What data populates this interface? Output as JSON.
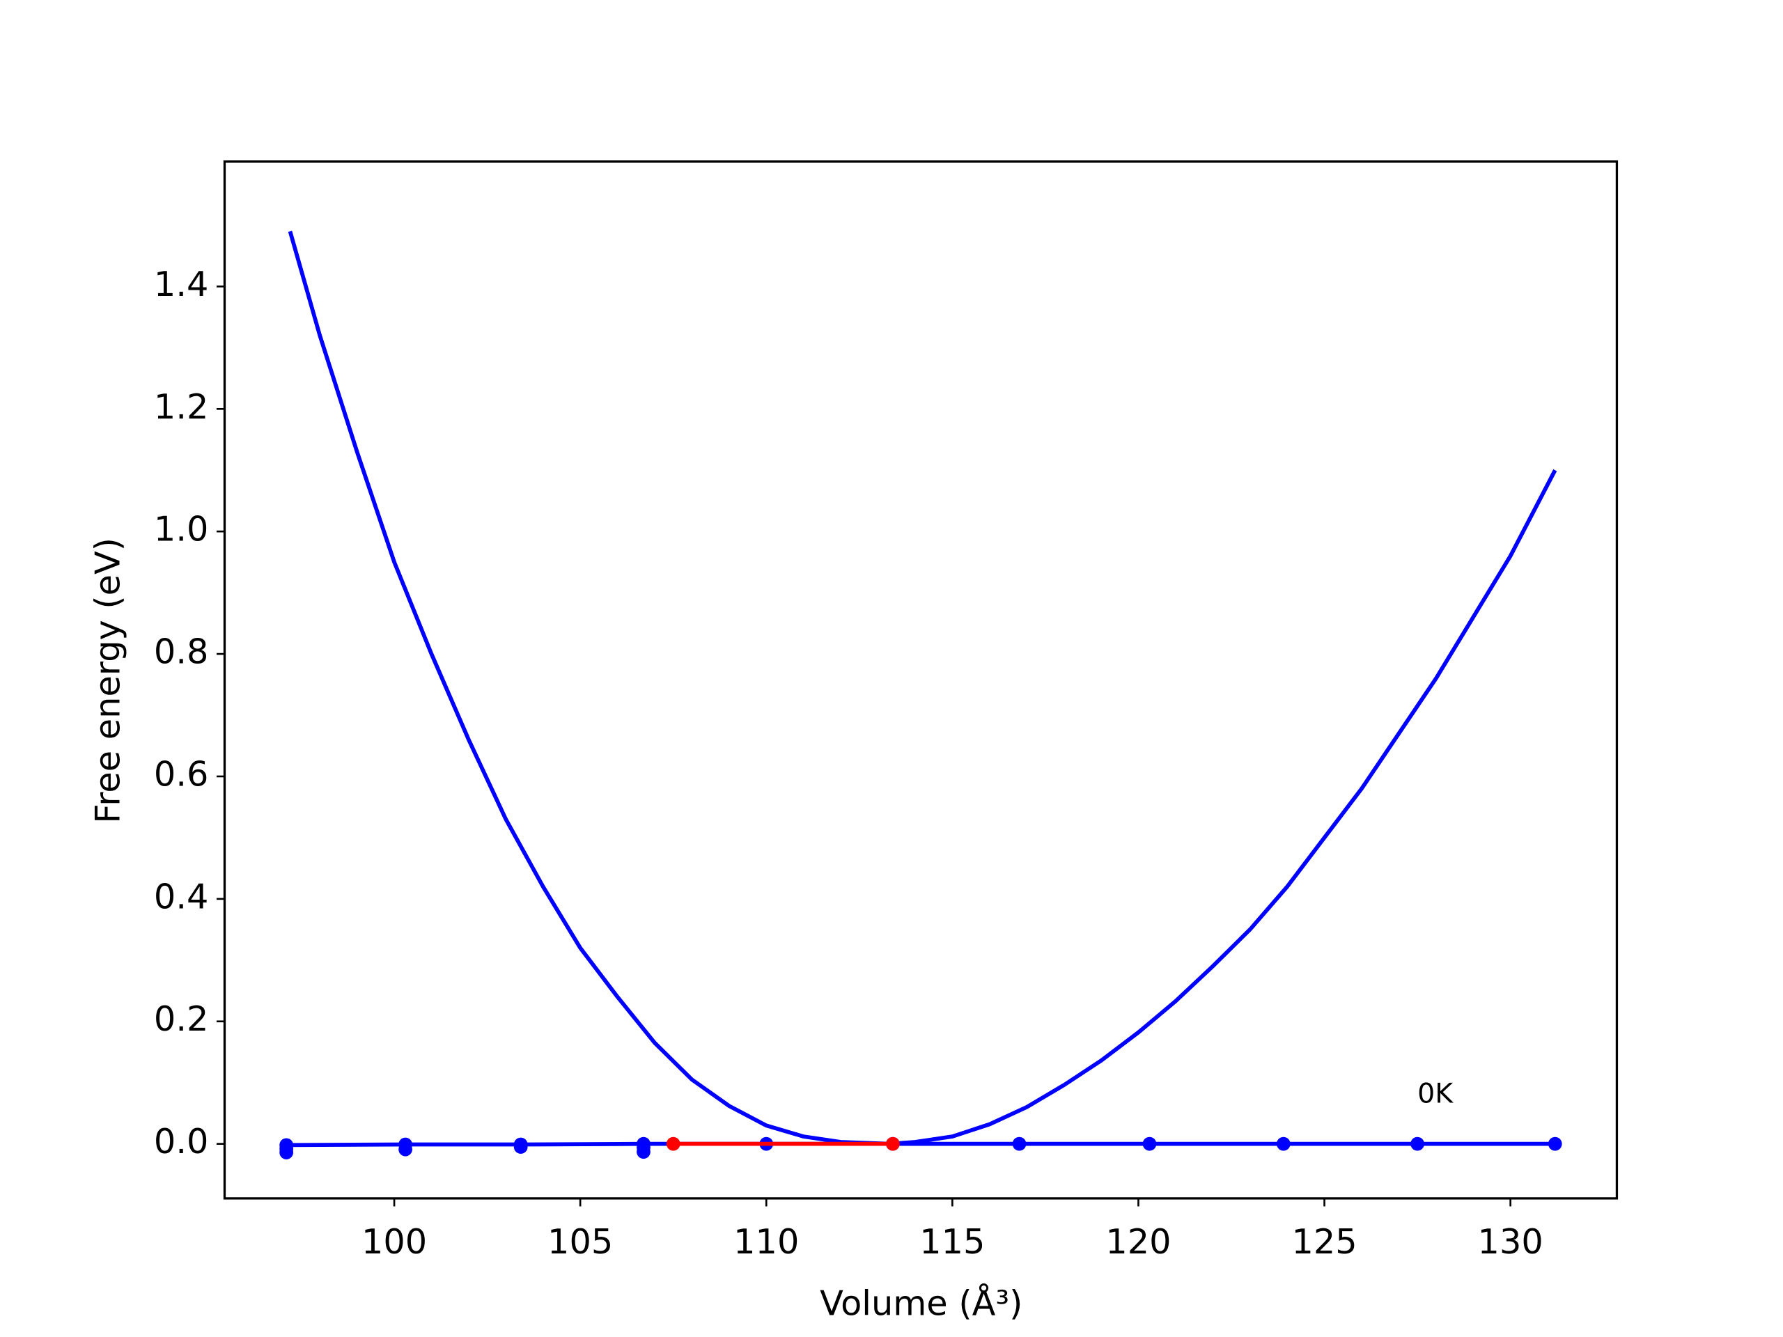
{
  "chart_data": {
    "type": "line",
    "xlabel": "Volume (Å³)",
    "ylabel": "Free energy (eV)",
    "xlim": [
      95.44,
      132.86
    ],
    "ylim": [
      -0.089,
      1.604
    ],
    "xticks": [
      100,
      105,
      110,
      115,
      120,
      125,
      130
    ],
    "yticks": [
      {
        "value": 0,
        "label": "0.0"
      },
      0.2,
      0.4,
      0.6,
      0.8,
      {
        "value": 1,
        "label": "1.0"
      },
      1.2,
      1.4
    ],
    "series": [
      {
        "color": "#0000ff",
        "markers": false,
        "line": true,
        "x": [
          97.2,
          98,
          99,
          100,
          101,
          102,
          103,
          104,
          105,
          106,
          107,
          108,
          109,
          110,
          111,
          112,
          113.3,
          114,
          115,
          116,
          117,
          118,
          119,
          120,
          121,
          122,
          123,
          124,
          125,
          126,
          127,
          128,
          129,
          130,
          131.2
        ],
        "values": [
          1.49,
          1.32,
          1.13,
          0.95,
          0.8,
          0.66,
          0.53,
          0.42,
          0.32,
          0.24,
          0.165,
          0.105,
          0.062,
          0.03,
          0.012,
          0.003,
          0,
          0.003,
          0.012,
          0.032,
          0.06,
          0.096,
          0.136,
          0.182,
          0.233,
          0.29,
          0.35,
          0.42,
          0.5,
          0.58,
          0.67,
          0.76,
          0.86,
          0.96,
          1.1
        ]
      },
      {
        "color": "#0000ff",
        "markers": true,
        "line": true,
        "x": [
          97.1,
          100.3,
          103.4,
          106.7,
          110.0,
          113.4,
          116.8,
          120.3,
          123.9,
          127.5,
          131.2
        ],
        "values": [
          -0.002,
          -0.001,
          -0.001,
          0,
          0,
          0,
          0,
          0,
          0,
          0,
          0
        ]
      },
      {
        "color": "#0000ff",
        "markers": true,
        "line": false,
        "x": [
          97.1,
          97.1,
          100.3,
          103.4,
          106.7,
          106.7
        ],
        "values": [
          -0.008,
          -0.014,
          -0.009,
          -0.005,
          -0.006,
          -0.013
        ]
      },
      {
        "color": "#ff0000",
        "markers": true,
        "line": true,
        "x": [
          107.5,
          113.4
        ],
        "values": [
          0,
          0
        ]
      }
    ],
    "annotations": [
      {
        "text": "0K",
        "x": 127.5,
        "y": 0.067
      }
    ]
  }
}
